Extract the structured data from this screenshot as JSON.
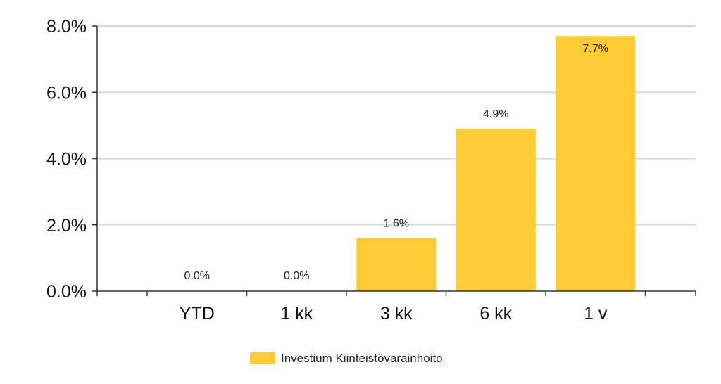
{
  "chart_data": {
    "type": "bar",
    "categories": [
      "YTD",
      "1 kk",
      "3 kk",
      "6 kk",
      "1 v"
    ],
    "series": [
      {
        "name": "Investium Kiinteistövarainhoito",
        "values": [
          0.0,
          0.0,
          1.6,
          4.9,
          7.7
        ],
        "labels": [
          "0.0%",
          "0.0%",
          "1.6%",
          "4.9%",
          "7.7%"
        ],
        "color": "#FDCB35"
      }
    ],
    "ylim": [
      0,
      8
    ],
    "yticks": [
      0,
      2,
      4,
      6,
      8
    ],
    "ytick_labels": [
      "0.0%",
      "2.0%",
      "4.0%",
      "6.0%",
      "8.0%"
    ],
    "grid": true,
    "grid_color": "#d9d9d9",
    "legend": {
      "placement": "bottom-center",
      "label": "Investium Kiinteistövarainhoito"
    }
  }
}
